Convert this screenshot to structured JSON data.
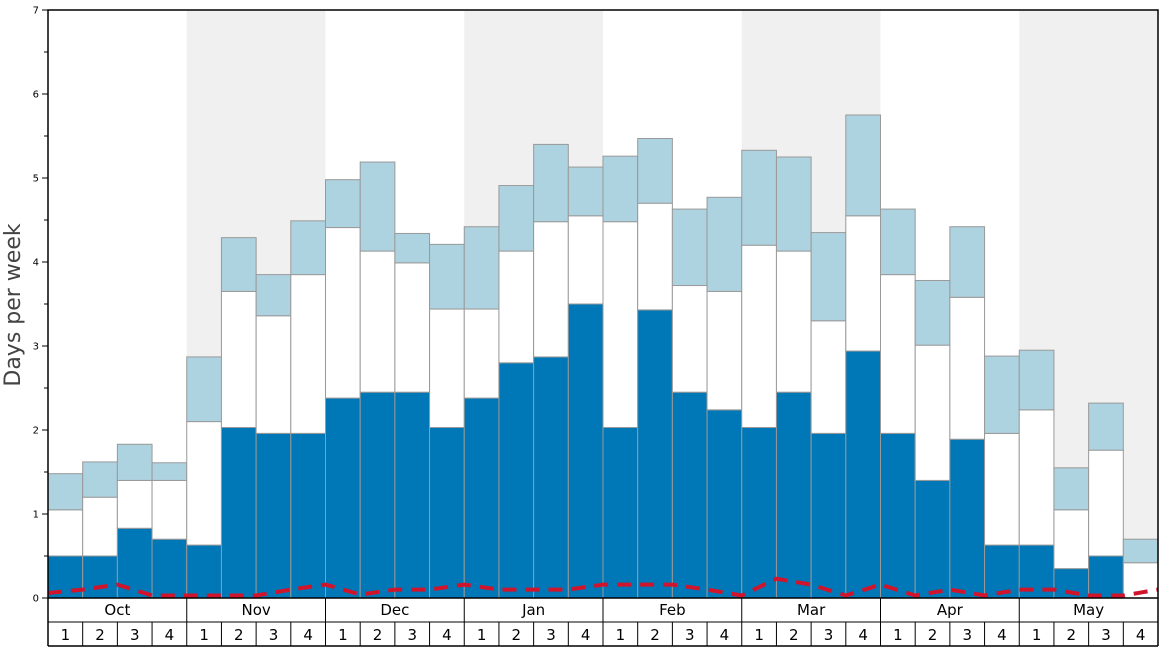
{
  "chart_data": {
    "type": "bar",
    "ylabel": "Days per week",
    "ylim": [
      0,
      7
    ],
    "y_ticks": [
      "0",
      "1",
      "2",
      "3",
      "4",
      "5",
      "6",
      "7"
    ],
    "months": [
      "Oct",
      "Nov",
      "Dec",
      "Jan",
      "Feb",
      "Mar",
      "Apr",
      "May"
    ],
    "weeks": [
      "1",
      "2",
      "3",
      "4"
    ],
    "stacked": true,
    "series": [
      {
        "color": "#0077b6",
        "values": [
          0.5,
          0.5,
          0.83,
          0.7,
          0.63,
          2.03,
          1.96,
          1.96,
          2.38,
          2.45,
          2.45,
          2.03,
          2.38,
          2.8,
          2.87,
          3.5,
          2.03,
          3.43,
          2.45,
          2.24,
          2.03,
          2.45,
          1.96,
          2.94,
          1.96,
          1.4,
          1.89,
          0.63,
          0.63,
          0.35,
          0.5,
          0.0
        ]
      },
      {
        "color": "#ffffff",
        "values": [
          0.55,
          0.7,
          0.57,
          0.7,
          1.47,
          1.62,
          1.4,
          1.89,
          2.03,
          1.68,
          1.54,
          1.41,
          1.06,
          1.33,
          1.61,
          1.05,
          2.45,
          1.27,
          1.27,
          1.41,
          2.17,
          1.68,
          1.34,
          1.61,
          1.89,
          1.61,
          1.69,
          1.33,
          1.61,
          0.7,
          1.26,
          0.42
        ]
      },
      {
        "color": "#aed3e0",
        "values": [
          0.43,
          0.42,
          0.43,
          0.21,
          0.77,
          0.64,
          0.49,
          0.64,
          0.57,
          1.06,
          0.35,
          0.77,
          0.98,
          0.78,
          0.92,
          0.58,
          0.78,
          0.77,
          0.91,
          1.12,
          1.13,
          1.12,
          1.05,
          1.2,
          0.78,
          0.77,
          0.84,
          0.92,
          0.71,
          0.5,
          0.56,
          0.28
        ]
      }
    ],
    "line": {
      "color": "#d0142c",
      "style": "dashed",
      "values": [
        0.06,
        0.1,
        0.16,
        0.03,
        0.03,
        0.03,
        0.03,
        0.1,
        0.16,
        0.04,
        0.1,
        0.1,
        0.16,
        0.1,
        0.1,
        0.1,
        0.16,
        0.16,
        0.16,
        0.1,
        0.03,
        0.23,
        0.16,
        0.03,
        0.16,
        0.03,
        0.1,
        0.03,
        0.1,
        0.1,
        0.03,
        0.03,
        0.1
      ]
    },
    "shaded_months": [
      "Nov",
      "Jan",
      "Mar",
      "May"
    ],
    "grid": false
  }
}
